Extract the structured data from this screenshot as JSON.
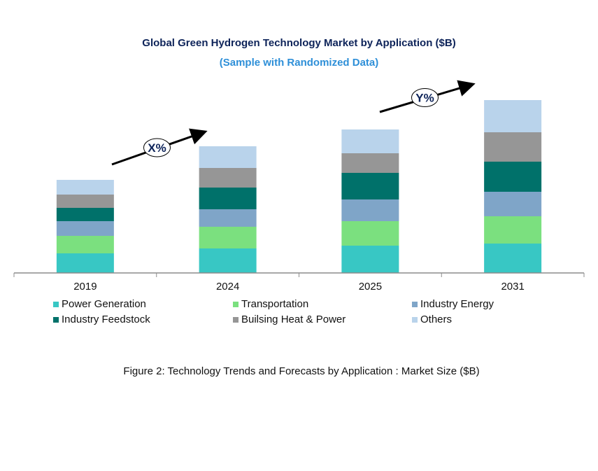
{
  "chart_data": {
    "type": "bar",
    "stacked": true,
    "title": "Global Green Hydrogen Technology Market by Application ($B)",
    "subtitle": "(Sample with Randomized Data)",
    "caption": "Figure 2: Technology  Trends  and Forecasts by Application : Market Size ($B)",
    "categories": [
      "2019",
      "2024",
      "2025",
      "2031"
    ],
    "ylim": [
      0,
      25
    ],
    "y_axis_shown": false,
    "grid": false,
    "legend_position": "bottom",
    "series": [
      {
        "name": "Power Generation",
        "color": "#38C7C4",
        "values": [
          2.8,
          3.5,
          3.9,
          4.2
        ]
      },
      {
        "name": "Transportation",
        "color": "#7BE07F",
        "values": [
          2.5,
          3.1,
          3.5,
          3.9
        ]
      },
      {
        "name": "Industry Energy",
        "color": "#7FA5C8",
        "values": [
          2.1,
          2.5,
          3.1,
          3.5
        ]
      },
      {
        "name": "Industry Feedstock",
        "color": "#00716A",
        "values": [
          1.9,
          3.1,
          3.8,
          4.3
        ]
      },
      {
        "name": "Builsing Heat & Power",
        "color": "#969696",
        "values": [
          1.9,
          2.8,
          2.8,
          4.2
        ]
      },
      {
        "name": "Others",
        "color": "#B9D3EB",
        "values": [
          2.1,
          3.1,
          3.4,
          4.6
        ]
      }
    ],
    "annotations": [
      {
        "label": "X%",
        "from": "2019",
        "to": "2024"
      },
      {
        "label": "Y%",
        "from": "2025",
        "to": "2031"
      }
    ]
  }
}
